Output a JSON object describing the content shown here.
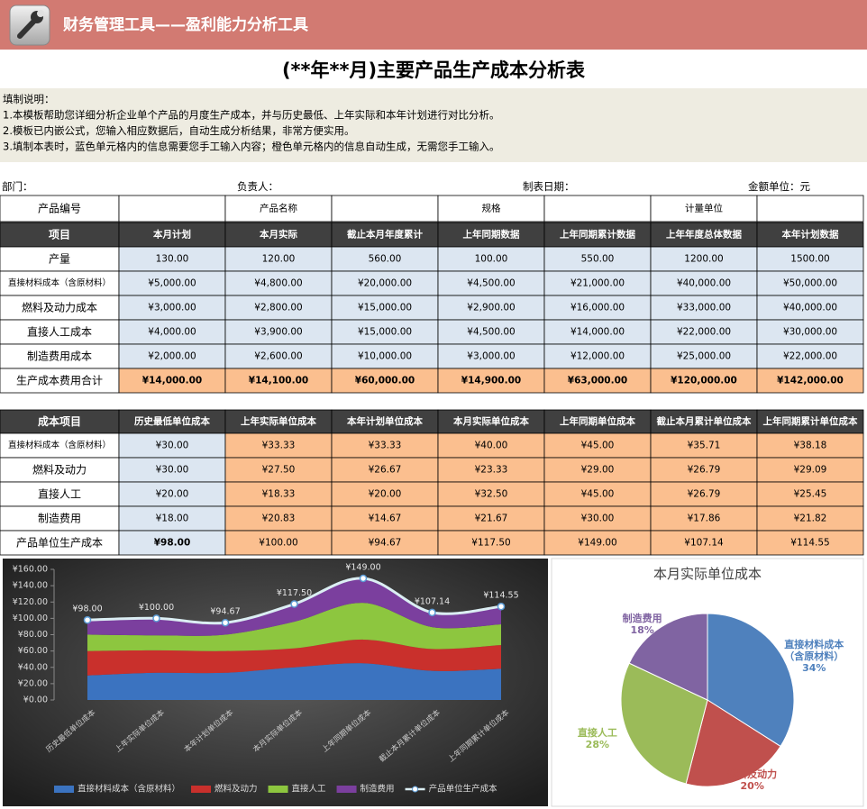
{
  "header": {
    "title": "财务管理工具——盈利能力分析工具"
  },
  "main_title": "(**年**月)主要产品生产成本分析表",
  "instructions": [
    "填制说明：",
    "1.本模板帮助您详细分析企业单个产品的月度生产成本，并与历史最低、上年实际和本年计划进行对比分析。",
    "2.模板已内嵌公式，您输入相应数据后，自动生成分析结果，非常方便实用。",
    "3.填制本表时，蓝色单元格内的信息需要您手工输入内容；橙色单元格内的信息自动生成，无需您手工输入。"
  ],
  "info": [
    "部门：",
    "负责人：",
    "制表日期：",
    "金额单位：元"
  ],
  "table1": {
    "info_row": [
      "产品编号",
      "产品名称",
      "规格",
      "计量单位"
    ],
    "header": [
      "项目",
      "本月计划",
      "本月实际",
      "截止本月年度累计",
      "上年同期数据",
      "上年同期累计数据",
      "上年年度总体数据",
      "本年计划数据"
    ],
    "rows": [
      [
        "产量",
        "130.00",
        "120.00",
        "560.00",
        "100.00",
        "550.00",
        "1200.00",
        "1500.00"
      ],
      [
        "直接材料成本（含原材料）",
        "¥5,000.00",
        "¥4,800.00",
        "¥20,000.00",
        "¥4,500.00",
        "¥21,000.00",
        "¥40,000.00",
        "¥50,000.00"
      ],
      [
        "燃料及动力成本",
        "¥3,000.00",
        "¥2,800.00",
        "¥15,000.00",
        "¥2,900.00",
        "¥16,000.00",
        "¥33,000.00",
        "¥40,000.00"
      ],
      [
        "直接人工成本",
        "¥4,000.00",
        "¥3,900.00",
        "¥15,000.00",
        "¥4,500.00",
        "¥14,000.00",
        "¥22,000.00",
        "¥30,000.00"
      ],
      [
        "制造费用成本",
        "¥2,000.00",
        "¥2,600.00",
        "¥10,000.00",
        "¥3,000.00",
        "¥12,000.00",
        "¥25,000.00",
        "¥22,000.00"
      ],
      [
        "生产成本费用合计",
        "¥14,000.00",
        "¥14,100.00",
        "¥60,000.00",
        "¥14,900.00",
        "¥63,000.00",
        "¥120,000.00",
        "¥142,000.00"
      ]
    ]
  },
  "table2": {
    "header": [
      "成本项目",
      "历史最低单位成本",
      "上年实际单位成本",
      "本年计划单位成本",
      "本月实际单位成本",
      "上年同期单位成本",
      "截止本月累计单位成本",
      "上年同期累计单位成本"
    ],
    "rows": [
      [
        "直接材料成本（含原材料）",
        "¥30.00",
        "¥33.33",
        "¥33.33",
        "¥40.00",
        "¥45.00",
        "¥35.71",
        "¥38.18"
      ],
      [
        "燃料及动力",
        "¥30.00",
        "¥27.50",
        "¥26.67",
        "¥23.33",
        "¥29.00",
        "¥26.79",
        "¥29.09"
      ],
      [
        "直接人工",
        "¥20.00",
        "¥18.33",
        "¥20.00",
        "¥32.50",
        "¥45.00",
        "¥26.79",
        "¥25.45"
      ],
      [
        "制造费用",
        "¥18.00",
        "¥20.83",
        "¥14.67",
        "¥21.67",
        "¥30.00",
        "¥17.86",
        "¥21.82"
      ],
      [
        "产品单位生产成本",
        "¥98.00",
        "¥100.00",
        "¥94.67",
        "¥117.50",
        "¥149.00",
        "¥107.14",
        "¥114.55"
      ]
    ]
  },
  "chart_data": [
    {
      "type": "area",
      "stacked": true,
      "legend": "bottom",
      "categories": [
        "历史最低单位成本",
        "上年实际单位成本",
        "本年计划单位成本",
        "本月实际单位成本",
        "上年同期单位成本",
        "截止本月累计单位成本",
        "上年同期累计单位成本"
      ],
      "series": [
        {
          "name": "直接材料成本（含原材料）",
          "color": "#3b73c0",
          "values": [
            30,
            33.33,
            33.33,
            40,
            45,
            35.71,
            38.18
          ]
        },
        {
          "name": "燃料及动力",
          "color": "#c9302c",
          "values": [
            30,
            27.5,
            26.67,
            23.33,
            29,
            26.79,
            29.09
          ]
        },
        {
          "name": "直接人工",
          "color": "#8dc63f",
          "values": [
            20,
            18.33,
            20,
            32.5,
            45,
            26.79,
            25.45
          ]
        },
        {
          "name": "制造费用",
          "color": "#7b3f9e",
          "values": [
            18,
            20.83,
            14.67,
            21.67,
            30,
            17.86,
            21.82
          ]
        },
        {
          "name": "产品单位生产成本",
          "type": "line",
          "color": "#dbeef3",
          "values": [
            98,
            100,
            94.67,
            117.5,
            149,
            107.14,
            114.55
          ],
          "value_labels": [
            "¥98.00",
            "¥100.00",
            "¥94.67",
            "¥117.50",
            "¥149.00",
            "¥107.14",
            "¥114.55"
          ]
        }
      ],
      "ylim": [
        0,
        160
      ],
      "yticks": [
        {
          "value": 0,
          "label": "¥0.00"
        },
        {
          "value": 20,
          "label": "¥20.00"
        },
        {
          "value": 40,
          "label": "¥40.00"
        },
        {
          "value": 60,
          "label": "¥60.00"
        },
        {
          "value": 80,
          "label": "¥80.00"
        },
        {
          "value": 100,
          "label": "¥100.00"
        },
        {
          "value": 120,
          "label": "¥120.00"
        },
        {
          "value": 140,
          "label": "¥140.00"
        },
        {
          "value": 160,
          "label": "¥160.00"
        }
      ]
    },
    {
      "type": "pie",
      "title": "本月实际单位成本",
      "categories": [
        "直接材料成本（含原材料）",
        "燃料及动力",
        "直接人工",
        "制造费用"
      ],
      "values": [
        34,
        20,
        28,
        18
      ],
      "value_labels": [
        "34%",
        "20%",
        "28%",
        "18%"
      ],
      "colors": [
        "#4f81bd",
        "#c0504d",
        "#9bbb59",
        "#8064a2"
      ]
    }
  ]
}
